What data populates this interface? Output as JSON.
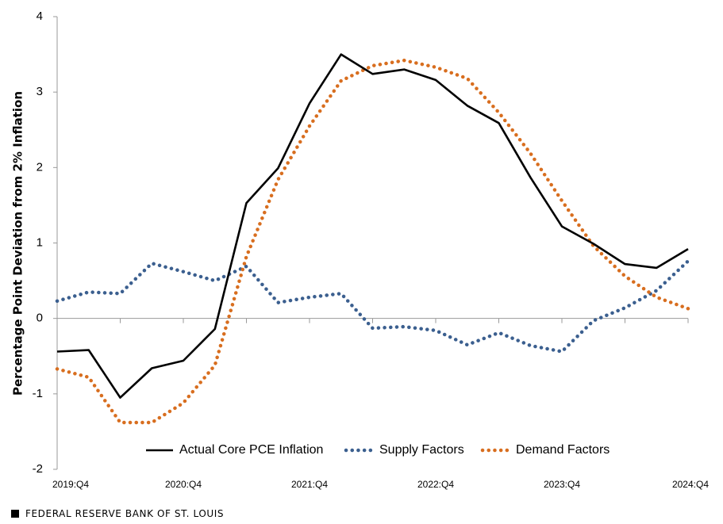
{
  "chart_data": {
    "type": "line",
    "title": "",
    "xlabel": "",
    "ylabel": "Percentage Point Deviation from 2% Inflation",
    "ylim": [
      -2,
      4
    ],
    "yticks": [
      -2,
      -1,
      0,
      1,
      2,
      3,
      4
    ],
    "x_tick_labels": [
      "2019:Q4",
      "2020:Q4",
      "2021:Q4",
      "2022:Q4",
      "2023:Q4",
      "2024:Q4"
    ],
    "legend_position": "bottom",
    "grid": false,
    "x": [
      "2019:Q4",
      "2020:Q1",
      "2020:Q2",
      "2020:Q3",
      "2020:Q4",
      "2021:Q1",
      "2021:Q2",
      "2021:Q3",
      "2021:Q4",
      "2022:Q1",
      "2022:Q2",
      "2022:Q3",
      "2022:Q4",
      "2023:Q1",
      "2023:Q2",
      "2023:Q3",
      "2023:Q4",
      "2024:Q1",
      "2024:Q2",
      "2024:Q3",
      "2024:Q4"
    ],
    "series": [
      {
        "name": "Actual Core PCE Inflation",
        "color": "#000000",
        "style": "solid",
        "values": [
          -0.44,
          -0.42,
          -1.05,
          -0.66,
          -0.56,
          -0.14,
          1.53,
          1.99,
          2.85,
          3.5,
          3.24,
          3.3,
          3.16,
          2.82,
          2.59,
          1.87,
          1.22,
          0.99,
          0.72,
          0.67,
          0.92
        ]
      },
      {
        "name": "Supply Factors",
        "color": "#3b5f8f",
        "style": "dotted",
        "values": [
          0.23,
          0.35,
          0.33,
          0.73,
          0.62,
          0.5,
          0.69,
          0.21,
          0.28,
          0.33,
          -0.13,
          -0.11,
          -0.16,
          -0.35,
          -0.19,
          -0.36,
          -0.44,
          -0.03,
          0.14,
          0.37,
          0.76
        ]
      },
      {
        "name": "Demand Factors",
        "color": "#d86e1f",
        "style": "dotted",
        "values": [
          -0.67,
          -0.78,
          -1.38,
          -1.38,
          -1.12,
          -0.62,
          0.82,
          1.84,
          2.55,
          3.15,
          3.35,
          3.42,
          3.33,
          3.18,
          2.73,
          2.19,
          1.56,
          0.96,
          0.56,
          0.28,
          0.13
        ]
      }
    ]
  },
  "footer": {
    "text": "FEDERAL RESERVE BANK OF ST. LOUIS"
  }
}
